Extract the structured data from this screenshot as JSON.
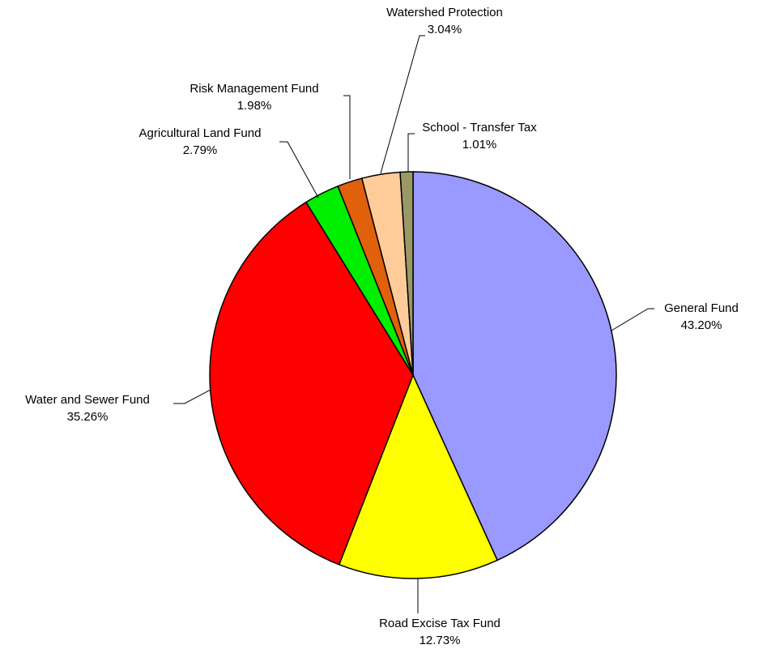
{
  "chart_data": {
    "type": "pie",
    "categories": [
      "General Fund",
      "Road Excise Tax Fund",
      "Water and Sewer Fund",
      "Agricultural Land Fund",
      "Risk Management Fund",
      "Watershed Protection",
      "School - Transfer Tax"
    ],
    "values": [
      43.2,
      12.73,
      35.26,
      2.79,
      1.98,
      3.04,
      1.01
    ],
    "value_labels": [
      "43.20%",
      "12.73%",
      "35.26%",
      "2.79%",
      "1.98%",
      "3.04%",
      "1.01%"
    ],
    "colors": [
      "#9999ff",
      "#ffff00",
      "#ff0000",
      "#00ee00",
      "#e0600c",
      "#ffcc99",
      "#999966"
    ]
  }
}
